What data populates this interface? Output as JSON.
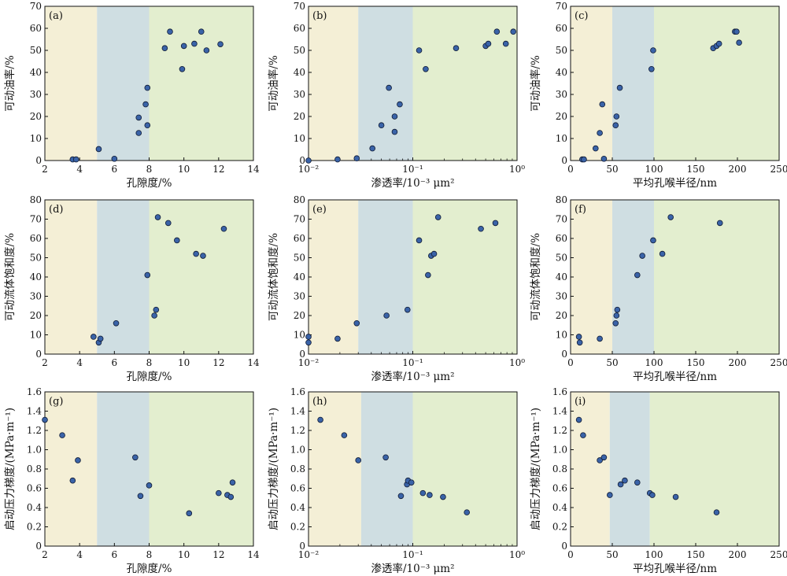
{
  "colors": {
    "zone_low": "#f4efd6",
    "zone_mid": "#cfdee2",
    "zone_high": "#e3eecf",
    "point_fill": "#3a63a8",
    "point_stroke": "#101b33",
    "axis": "#111111"
  },
  "chart_data": [
    {
      "type": "scatter",
      "label": "(a)",
      "xlabel": "孔隙度/%",
      "ylabel": "可动油率/%",
      "xscale": "linear",
      "xlim": [
        2,
        14
      ],
      "ylim": [
        0,
        70
      ],
      "xticks": [
        2,
        4,
        6,
        8,
        10,
        12,
        14
      ],
      "xtick_labels": [
        "2",
        "4",
        "6",
        "8",
        "10",
        "12",
        "14"
      ],
      "yticks": [
        0,
        10,
        20,
        30,
        40,
        50,
        60,
        70
      ],
      "ytick_labels": [
        "0",
        "10",
        "20",
        "30",
        "40",
        "50",
        "60",
        "70"
      ],
      "zones": [
        [
          2,
          5
        ],
        [
          5,
          8
        ],
        [
          8,
          14
        ]
      ],
      "points": [
        [
          3.6,
          0.5
        ],
        [
          3.8,
          0.5
        ],
        [
          5.1,
          5.2
        ],
        [
          6.0,
          0.8
        ],
        [
          7.4,
          12.5
        ],
        [
          7.4,
          19.5
        ],
        [
          7.8,
          25.5
        ],
        [
          7.9,
          16
        ],
        [
          7.9,
          33
        ],
        [
          8.9,
          51
        ],
        [
          9.2,
          58.5
        ],
        [
          9.9,
          41.5
        ],
        [
          10.0,
          52
        ],
        [
          10.6,
          53
        ],
        [
          11.0,
          58.5
        ],
        [
          11.3,
          50
        ],
        [
          12.1,
          52.8
        ]
      ]
    },
    {
      "type": "scatter",
      "label": "(b)",
      "xlabel": "渗透率/10⁻³ μm²",
      "ylabel": "可动油率/%",
      "xscale": "log",
      "xlim": [
        0.01,
        1
      ],
      "ylim": [
        0,
        70
      ],
      "xticks": [
        0.01,
        0.1,
        1
      ],
      "xtick_labels": [
        "10⁻²",
        "10⁻¹",
        "10⁰"
      ],
      "yticks": [
        0,
        10,
        20,
        30,
        40,
        50,
        60,
        70
      ],
      "ytick_labels": [
        "0",
        "10",
        "20",
        "30",
        "40",
        "50",
        "60",
        "70"
      ],
      "zones": [
        [
          0.01,
          0.03
        ],
        [
          0.03,
          0.1
        ],
        [
          0.1,
          1
        ]
      ],
      "points": [
        [
          0.01,
          0
        ],
        [
          0.019,
          0.5
        ],
        [
          0.029,
          1
        ],
        [
          0.041,
          5.5
        ],
        [
          0.05,
          16
        ],
        [
          0.059,
          33
        ],
        [
          0.067,
          20
        ],
        [
          0.067,
          13
        ],
        [
          0.075,
          25.5
        ],
        [
          0.115,
          50
        ],
        [
          0.133,
          41.5
        ],
        [
          0.26,
          51
        ],
        [
          0.5,
          52
        ],
        [
          0.53,
          53
        ],
        [
          0.64,
          58.5
        ],
        [
          0.78,
          53
        ],
        [
          0.92,
          58.5
        ]
      ]
    },
    {
      "type": "scatter",
      "label": "(c)",
      "xlabel": "平均孔喉半径/nm",
      "ylabel": "可动油率/%",
      "xscale": "linear",
      "xlim": [
        0,
        250
      ],
      "ylim": [
        0,
        70
      ],
      "xticks": [
        0,
        50,
        100,
        150,
        200,
        250
      ],
      "xtick_labels": [
        "0",
        "50",
        "100",
        "150",
        "200",
        "250"
      ],
      "yticks": [
        0,
        10,
        20,
        30,
        40,
        50,
        60,
        70
      ],
      "ytick_labels": [
        "0",
        "10",
        "20",
        "30",
        "40",
        "50",
        "60",
        "70"
      ],
      "zones": [
        [
          0,
          50
        ],
        [
          50,
          100
        ],
        [
          100,
          250
        ]
      ],
      "points": [
        [
          14,
          0.5
        ],
        [
          16,
          0.5
        ],
        [
          30,
          5.5
        ],
        [
          35,
          12.5
        ],
        [
          38,
          25.5
        ],
        [
          40,
          0.8
        ],
        [
          54,
          16
        ],
        [
          55,
          20
        ],
        [
          59,
          33
        ],
        [
          97,
          41.5
        ],
        [
          99,
          50
        ],
        [
          171,
          51
        ],
        [
          175,
          52
        ],
        [
          178,
          53
        ],
        [
          197,
          58.5
        ],
        [
          199,
          58.5
        ],
        [
          202,
          53.5
        ]
      ]
    },
    {
      "type": "scatter",
      "label": "(d)",
      "xlabel": "孔隙度/%",
      "ylabel": "可动流体饱和度/%",
      "xscale": "linear",
      "xlim": [
        2,
        14
      ],
      "ylim": [
        0,
        80
      ],
      "xticks": [
        2,
        4,
        6,
        8,
        10,
        12,
        14
      ],
      "xtick_labels": [
        "2",
        "4",
        "6",
        "8",
        "10",
        "12",
        "14"
      ],
      "yticks": [
        0,
        10,
        20,
        30,
        40,
        50,
        60,
        70,
        80
      ],
      "ytick_labels": [
        "0",
        "10",
        "20",
        "30",
        "40",
        "50",
        "60",
        "70",
        "80"
      ],
      "zones": [
        [
          2,
          5
        ],
        [
          5,
          8
        ],
        [
          8,
          14
        ]
      ],
      "points": [
        [
          4.8,
          9
        ],
        [
          5.1,
          6
        ],
        [
          5.2,
          8
        ],
        [
          6.1,
          16
        ],
        [
          7.9,
          41
        ],
        [
          8.3,
          20
        ],
        [
          8.4,
          23
        ],
        [
          8.5,
          71
        ],
        [
          9.1,
          68
        ],
        [
          9.6,
          59
        ],
        [
          10.7,
          52
        ],
        [
          11.1,
          51
        ],
        [
          12.3,
          65
        ]
      ]
    },
    {
      "type": "scatter",
      "label": "(e)",
      "xlabel": "渗透率/10⁻³ μm²",
      "ylabel": "可动流体饱和度/%",
      "xscale": "log",
      "xlim": [
        0.01,
        1
      ],
      "ylim": [
        0,
        80
      ],
      "xticks": [
        0.01,
        0.1,
        1
      ],
      "xtick_labels": [
        "10⁻²",
        "10⁻¹",
        "10⁰"
      ],
      "yticks": [
        0,
        10,
        20,
        30,
        40,
        50,
        60,
        70,
        80
      ],
      "ytick_labels": [
        "0",
        "10",
        "20",
        "30",
        "40",
        "50",
        "60",
        "70",
        "80"
      ],
      "zones": [
        [
          0.01,
          0.03
        ],
        [
          0.03,
          0.1
        ],
        [
          0.1,
          1
        ]
      ],
      "points": [
        [
          0.01,
          9
        ],
        [
          0.01,
          6
        ],
        [
          0.019,
          8
        ],
        [
          0.029,
          16
        ],
        [
          0.056,
          20
        ],
        [
          0.089,
          23
        ],
        [
          0.115,
          59
        ],
        [
          0.14,
          41
        ],
        [
          0.15,
          51
        ],
        [
          0.16,
          52
        ],
        [
          0.175,
          71
        ],
        [
          0.45,
          65
        ],
        [
          0.62,
          68
        ]
      ]
    },
    {
      "type": "scatter",
      "label": "(f)",
      "xlabel": "平均孔喉半径/nm",
      "ylabel": "可动流体饱和度/%",
      "xscale": "linear",
      "xlim": [
        0,
        250
      ],
      "ylim": [
        0,
        80
      ],
      "xticks": [
        0,
        50,
        100,
        150,
        200,
        250
      ],
      "xtick_labels": [
        "0",
        "50",
        "100",
        "150",
        "200",
        "250"
      ],
      "yticks": [
        0,
        10,
        20,
        30,
        40,
        50,
        60,
        70,
        80
      ],
      "ytick_labels": [
        "0",
        "10",
        "20",
        "30",
        "40",
        "50",
        "60",
        "70",
        "80"
      ],
      "zones": [
        [
          0,
          50
        ],
        [
          50,
          100
        ],
        [
          100,
          250
        ]
      ],
      "points": [
        [
          10,
          9
        ],
        [
          11,
          6
        ],
        [
          35,
          8
        ],
        [
          54,
          16
        ],
        [
          55,
          20
        ],
        [
          56,
          23
        ],
        [
          80,
          41
        ],
        [
          86,
          51
        ],
        [
          99,
          59
        ],
        [
          110,
          52
        ],
        [
          120,
          71
        ],
        [
          179,
          68
        ]
      ]
    },
    {
      "type": "scatter",
      "label": "(g)",
      "xlabel": "孔隙度/%",
      "ylabel": "启动压力梯度/(MPa·m⁻¹)",
      "xscale": "linear",
      "xlim": [
        2,
        14
      ],
      "ylim": [
        0,
        1.6
      ],
      "xticks": [
        2,
        4,
        6,
        8,
        10,
        12,
        14
      ],
      "xtick_labels": [
        "2",
        "4",
        "6",
        "8",
        "10",
        "12",
        "14"
      ],
      "yticks": [
        0,
        0.2,
        0.4,
        0.6,
        0.8,
        1.0,
        1.2,
        1.4,
        1.6
      ],
      "ytick_labels": [
        "0",
        "0.2",
        "0.4",
        "0.6",
        "0.8",
        "1.0",
        "1.2",
        "1.4",
        "1.6"
      ],
      "zones": [
        [
          2,
          5
        ],
        [
          5,
          8
        ],
        [
          8,
          14
        ]
      ],
      "points": [
        [
          2.0,
          1.31
        ],
        [
          3.0,
          1.15
        ],
        [
          3.6,
          0.68
        ],
        [
          3.9,
          0.89
        ],
        [
          7.2,
          0.92
        ],
        [
          7.5,
          0.52
        ],
        [
          8.0,
          0.63
        ],
        [
          10.3,
          0.34
        ],
        [
          12.0,
          0.55
        ],
        [
          12.5,
          0.53
        ],
        [
          12.7,
          0.51
        ],
        [
          12.8,
          0.66
        ]
      ]
    },
    {
      "type": "scatter",
      "label": "(h)",
      "xlabel": "渗透率/10⁻³ μm²",
      "ylabel": "启动压力梯度/(MPa·m⁻¹)",
      "xscale": "log",
      "xlim": [
        0.01,
        1
      ],
      "ylim": [
        0,
        1.6
      ],
      "xticks": [
        0.01,
        0.1,
        1
      ],
      "xtick_labels": [
        "10⁻²",
        "10⁻¹",
        "10⁰"
      ],
      "yticks": [
        0,
        0.2,
        0.4,
        0.6,
        0.8,
        1.0,
        1.2,
        1.4,
        1.6
      ],
      "ytick_labels": [
        "0",
        "0.2",
        "0.4",
        "0.6",
        "0.8",
        "1.0",
        "1.2",
        "1.4",
        "1.6"
      ],
      "zones": [
        [
          0.01,
          0.032
        ],
        [
          0.032,
          0.1
        ],
        [
          0.1,
          1
        ]
      ],
      "points": [
        [
          0.013,
          1.31
        ],
        [
          0.022,
          1.15
        ],
        [
          0.03,
          0.89
        ],
        [
          0.055,
          0.92
        ],
        [
          0.077,
          0.52
        ],
        [
          0.088,
          0.64
        ],
        [
          0.09,
          0.68
        ],
        [
          0.097,
          0.66
        ],
        [
          0.125,
          0.55
        ],
        [
          0.145,
          0.53
        ],
        [
          0.195,
          0.51
        ],
        [
          0.33,
          0.35
        ]
      ]
    },
    {
      "type": "scatter",
      "label": "(i)",
      "xlabel": "平均孔喉半径/nm",
      "ylabel": "启动压力梯度/(MPa·m⁻¹)",
      "xscale": "linear",
      "xlim": [
        0,
        250
      ],
      "ylim": [
        0,
        1.6
      ],
      "xticks": [
        0,
        50,
        100,
        150,
        200,
        250
      ],
      "xtick_labels": [
        "0",
        "50",
        "100",
        "150",
        "200",
        "250"
      ],
      "yticks": [
        0,
        0.2,
        0.4,
        0.6,
        0.8,
        1.0,
        1.2,
        1.4,
        1.6
      ],
      "ytick_labels": [
        "0",
        "0.2",
        "0.4",
        "0.6",
        "0.8",
        "1.0",
        "1.2",
        "1.4",
        "1.6"
      ],
      "zones": [
        [
          0,
          47
        ],
        [
          47,
          95
        ],
        [
          95,
          250
        ]
      ],
      "points": [
        [
          10,
          1.31
        ],
        [
          15,
          1.15
        ],
        [
          35,
          0.89
        ],
        [
          40,
          0.92
        ],
        [
          47,
          0.53
        ],
        [
          60,
          0.64
        ],
        [
          65,
          0.68
        ],
        [
          80,
          0.66
        ],
        [
          95,
          0.55
        ],
        [
          98,
          0.53
        ],
        [
          126,
          0.51
        ],
        [
          175,
          0.35
        ]
      ]
    }
  ]
}
